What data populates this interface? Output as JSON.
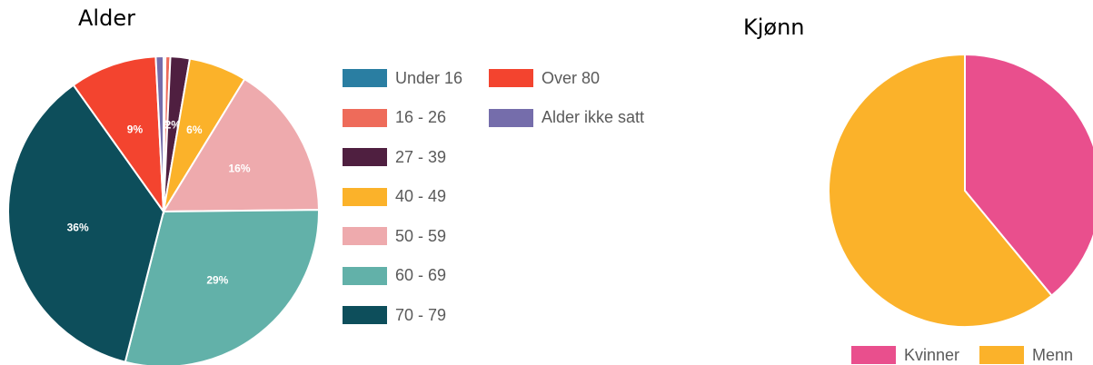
{
  "chart_data": [
    {
      "type": "pie",
      "title": "Alder",
      "slices": [
        {
          "label": "Under 16",
          "value": 0.2,
          "color": "#2a7ea2",
          "data_label": ""
        },
        {
          "label": "16 - 26",
          "value": 0.5,
          "color": "#ee6b5a",
          "data_label": "1%"
        },
        {
          "label": "27 - 39",
          "value": 2,
          "color": "#4f1f40",
          "data_label": "2%"
        },
        {
          "label": "40 - 49",
          "value": 6,
          "color": "#fbb22a",
          "data_label": "6%"
        },
        {
          "label": "50 - 59",
          "value": 16,
          "color": "#eeaaad",
          "data_label": "16%"
        },
        {
          "label": "60 - 69",
          "value": 29,
          "color": "#62b1a9",
          "data_label": "29%"
        },
        {
          "label": "70 - 79",
          "value": 36,
          "color": "#0d4e5b",
          "data_label": "36%"
        },
        {
          "label": "Over 80",
          "value": 9,
          "color": "#f3442f",
          "data_label": "9%"
        },
        {
          "label": "Alder ikke satt",
          "value": 0.8,
          "color": "#756dab",
          "data_label": ""
        }
      ],
      "legend_position": "right"
    },
    {
      "type": "pie",
      "title": "Kjønn",
      "slices": [
        {
          "label": "Kvinner",
          "value": 39,
          "color": "#e94f8d",
          "data_label": ""
        },
        {
          "label": "Menn",
          "value": 61,
          "color": "#fbb22a",
          "data_label": ""
        }
      ],
      "legend_position": "bottom"
    }
  ]
}
